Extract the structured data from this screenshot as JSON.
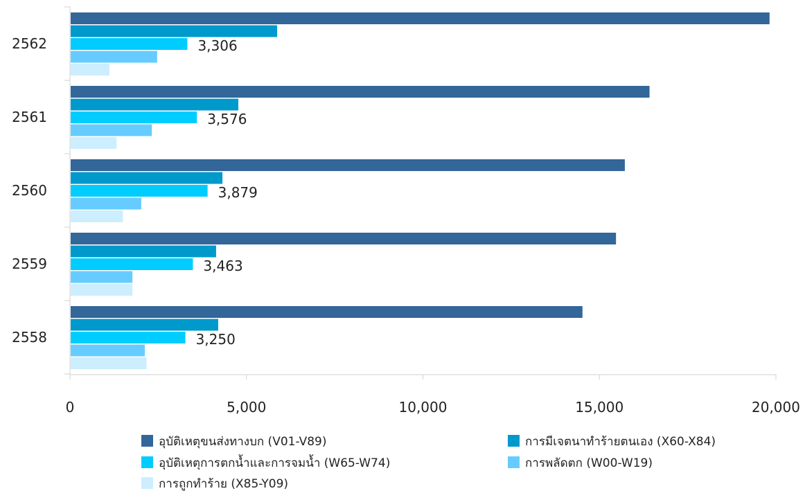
{
  "chart_data": {
    "type": "bar",
    "orientation": "horizontal",
    "categories": [
      "2562",
      "2561",
      "2560",
      "2559",
      "2558"
    ],
    "series": [
      {
        "name": "อุบัติเหตุขนส่งทางบก (V01-V89)",
        "color": "#336699",
        "values": [
          19800,
          16400,
          15700,
          15450,
          14500
        ]
      },
      {
        "name": "การมีเจตนาทำร้ายตนเอง (X60-X84)",
        "color": "#0099CC",
        "values": [
          5850,
          4750,
          4300,
          4120,
          4180
        ]
      },
      {
        "name": "อุบัติเหตุการตกน้ำและการจมน้ำ (W65-W74)",
        "color": "#00CCFF",
        "values": [
          3306,
          3576,
          3879,
          3463,
          3250
        ]
      },
      {
        "name": "การพลัดตก (W00-W19)",
        "color": "#66CCFF",
        "values": [
          2450,
          2300,
          2000,
          1750,
          2100
        ]
      },
      {
        "name": "การถูกทำร้าย (X85-Y09)",
        "color": "#CCEEFF",
        "values": [
          1100,
          1300,
          1480,
          1750,
          2150
        ]
      }
    ],
    "data_labels": [
      "3,306",
      "3,576",
      "3,879",
      "3,463",
      "3,250"
    ],
    "x_ticks": [
      "0",
      "5,000",
      "10,000",
      "15,000",
      "20,000"
    ],
    "xlim": [
      0,
      20000
    ],
    "title": "",
    "xlabel": "",
    "ylabel": "",
    "grid": false,
    "legend_position": "bottom"
  }
}
